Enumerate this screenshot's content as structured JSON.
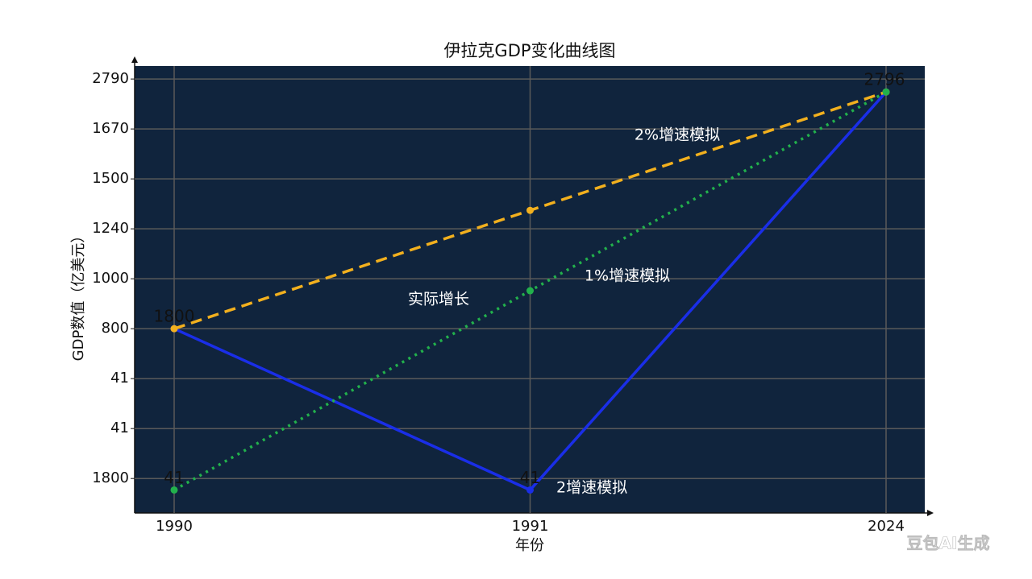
{
  "chart_data": {
    "type": "line",
    "title": "伊拉克GDP变化曲线图",
    "x_label": "年份",
    "y_label": "GDP数值（亿美元）",
    "categories": [
      "1990",
      "1991",
      "2024"
    ],
    "ylim": [
      -0.69,
      8.26
    ],
    "yticks": [
      {
        "value": 0,
        "label": "1800"
      },
      {
        "value": 1,
        "label": "41"
      },
      {
        "value": 2,
        "label": "41"
      },
      {
        "value": 3,
        "label": "800"
      },
      {
        "value": 4,
        "label": "1000"
      },
      {
        "value": 5,
        "label": "1240"
      },
      {
        "value": 6,
        "label": "1500"
      },
      {
        "value": 7,
        "label": "1670"
      },
      {
        "value": 8,
        "label": "2790"
      }
    ],
    "grid": true,
    "series": [
      {
        "name": "实际增长",
        "color": "#1a2ee8",
        "style": "solid",
        "values": [
          3,
          -0.23,
          7.74
        ],
        "value_labels": [
          null,
          "41",
          null
        ]
      },
      {
        "name": "2%增速模拟",
        "color": "#f2b01e",
        "style": "dashed",
        "values": [
          3,
          5.37,
          7.74
        ],
        "value_labels": [
          "1800",
          null,
          "2796"
        ]
      },
      {
        "name": "1%增速模拟",
        "color": "#22b14c",
        "style": "dotted",
        "values": [
          -0.23,
          3.76,
          7.74
        ],
        "value_labels": [
          "41",
          null,
          null
        ]
      }
    ],
    "annotation": "2增速模拟",
    "watermark": "豆包AI生成"
  }
}
